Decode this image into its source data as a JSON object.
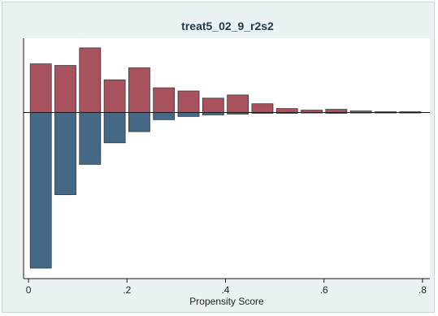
{
  "chart_data": {
    "type": "bar",
    "title": "treat5_02_9_r2s2",
    "xlabel": "Propensity Score",
    "ylabel": "",
    "x_ticks": [
      0,
      0.2,
      0.4,
      0.6,
      0.8
    ],
    "x_tick_labels": [
      "0",
      ".2",
      ".4",
      ".6",
      ".8"
    ],
    "xlim": [
      -0.01,
      0.815
    ],
    "bin_width": 0.05,
    "bin_centers": [
      0.025,
      0.075,
      0.125,
      0.175,
      0.225,
      0.275,
      0.325,
      0.375,
      0.425,
      0.475,
      0.525,
      0.575,
      0.625,
      0.675,
      0.725,
      0.775
    ],
    "ylim": [
      -0.2,
      0.085
    ],
    "series": [
      {
        "color": "#a8525d",
        "values": [
          0.061,
          0.059,
          0.081,
          0.041,
          0.056,
          0.031,
          0.027,
          0.018,
          0.022,
          0.011,
          0.005,
          0.003,
          0.004,
          0.002,
          0.001,
          0.001
        ]
      },
      {
        "color": "#466887",
        "values": [
          -0.195,
          -0.103,
          -0.065,
          -0.038,
          -0.024,
          -0.009,
          -0.005,
          -0.003,
          -0.002,
          -0.001,
          -0.001,
          0,
          -0.001,
          0,
          0,
          0
        ]
      }
    ],
    "grid": false,
    "legend": "none",
    "background": "#eaf2f3",
    "plot_background": "#ffffff"
  }
}
